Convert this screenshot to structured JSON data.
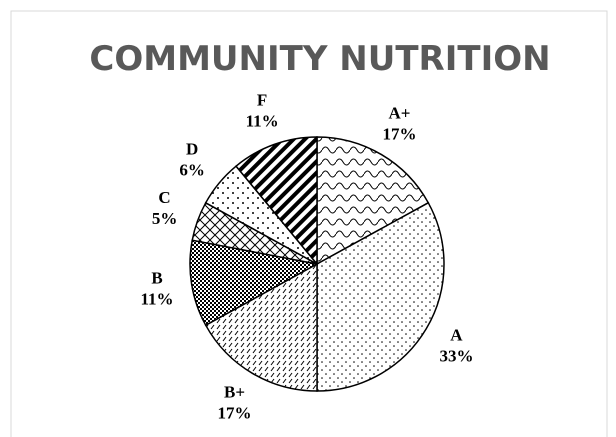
{
  "chart_data": {
    "type": "pie",
    "title": "COMMUNITY NUTRITION",
    "categories": [
      "A+",
      "A",
      "B+",
      "B",
      "C",
      "D",
      "F"
    ],
    "values": [
      17,
      33,
      17,
      11,
      5,
      6,
      11
    ],
    "value_labels": [
      "17%",
      "33%",
      "17%",
      "11%",
      "5%",
      "6%",
      "11%"
    ]
  }
}
